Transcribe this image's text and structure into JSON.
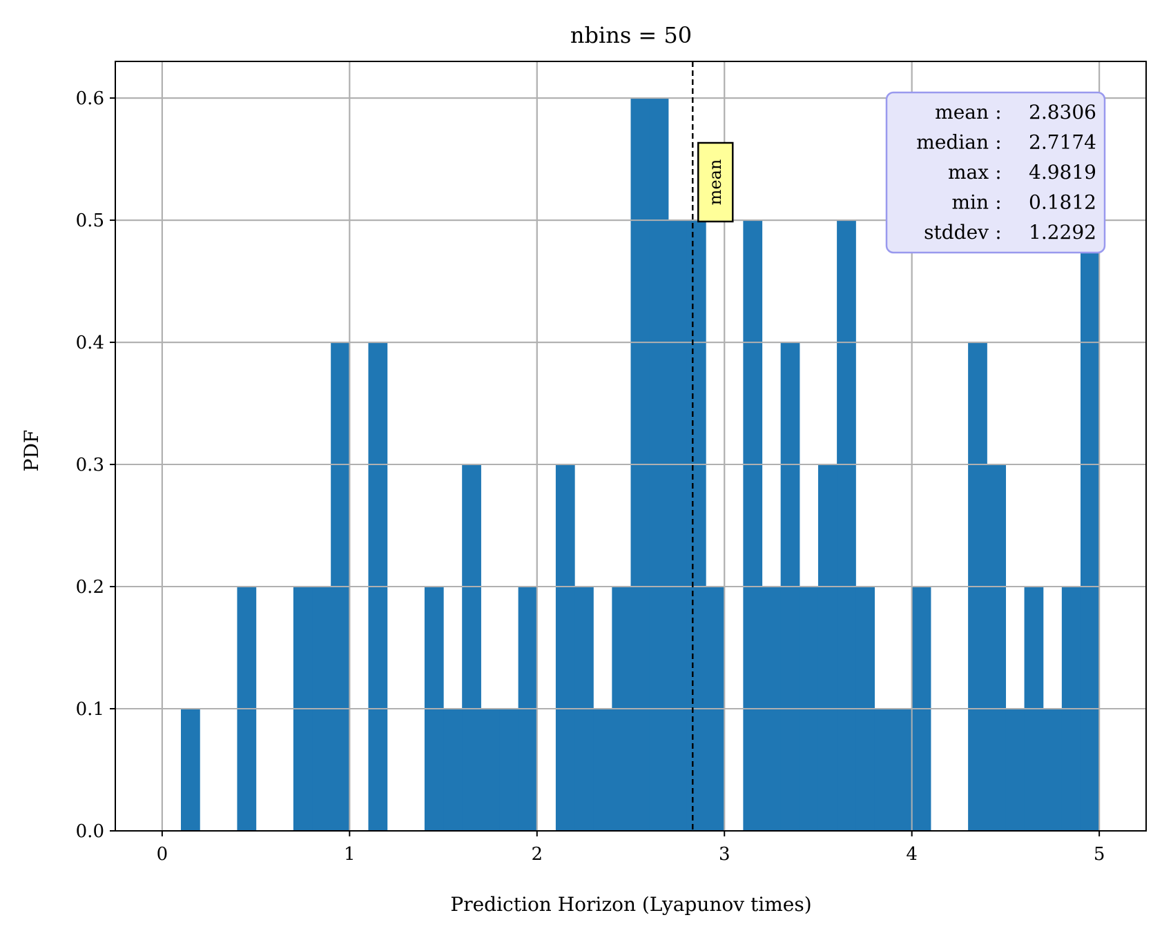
{
  "chart_data": {
    "type": "bar",
    "title": "nbins = 50",
    "xlabel": "Prediction Horizon (Lyapunov times)",
    "ylabel": "PDF",
    "xlim": [
      -0.25,
      5.25
    ],
    "ylim": [
      0.0,
      0.63
    ],
    "xticks": [
      "0",
      "1",
      "2",
      "3",
      "4",
      "5"
    ],
    "yticks": [
      "0.0",
      "0.1",
      "0.2",
      "0.3",
      "0.4",
      "0.5",
      "0.6"
    ],
    "grid": true,
    "bar_color": "#1f77b4",
    "bin_start": 0.0,
    "bin_width": 0.1,
    "values": [
      0.0,
      0.1,
      0.0,
      0.0,
      0.2,
      0.0,
      0.0,
      0.2,
      0.2,
      0.4,
      0.0,
      0.4,
      0.0,
      0.0,
      0.2,
      0.1,
      0.3,
      0.1,
      0.1,
      0.2,
      0.0,
      0.3,
      0.2,
      0.1,
      0.2,
      0.6,
      0.6,
      0.5,
      0.5,
      0.2,
      0.0,
      0.5,
      0.2,
      0.4,
      0.2,
      0.3,
      0.5,
      0.2,
      0.1,
      0.1,
      0.2,
      0.0,
      0.0,
      0.4,
      0.3,
      0.1,
      0.2,
      0.1,
      0.2,
      0.5
    ],
    "mean_line": {
      "x": 2.8306,
      "label": "mean",
      "label_bg": "#ffff99"
    },
    "stats": {
      "bg": "#e6e6fa",
      "border": "#9999ee",
      "lines": [
        {
          "key": "mean",
          "value": "2.8306"
        },
        {
          "key": "median",
          "value": "2.7174"
        },
        {
          "key": "max",
          "value": "4.9819"
        },
        {
          "key": "min",
          "value": "0.1812"
        },
        {
          "key": "stddev",
          "value": "1.2292"
        }
      ]
    }
  }
}
